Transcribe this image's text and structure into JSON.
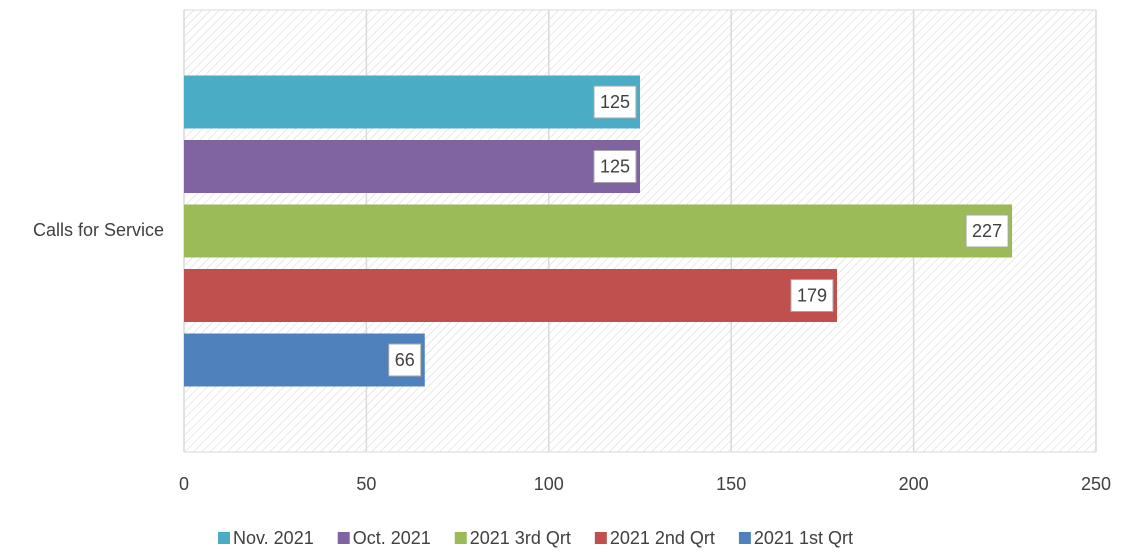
{
  "chart_data": {
    "type": "bar",
    "orientation": "horizontal",
    "categories": [
      "Calls for Service"
    ],
    "series": [
      {
        "name": "Nov. 2021",
        "color": "#4bacc6",
        "values": [
          125
        ]
      },
      {
        "name": "Oct. 2021",
        "color": "#8064a2",
        "values": [
          125
        ]
      },
      {
        "name": "2021 3rd Qrt",
        "color": "#9bbb59",
        "values": [
          227
        ]
      },
      {
        "name": "2021 2nd Qrt",
        "color": "#c0504d",
        "values": [
          179
        ]
      },
      {
        "name": "2021 1st Qrt",
        "color": "#4f81bd",
        "values": [
          66
        ]
      }
    ],
    "xlim": [
      0,
      250
    ],
    "xticks": [
      0,
      50,
      100,
      150,
      200,
      250
    ],
    "grid": true,
    "legend": "bottom"
  }
}
